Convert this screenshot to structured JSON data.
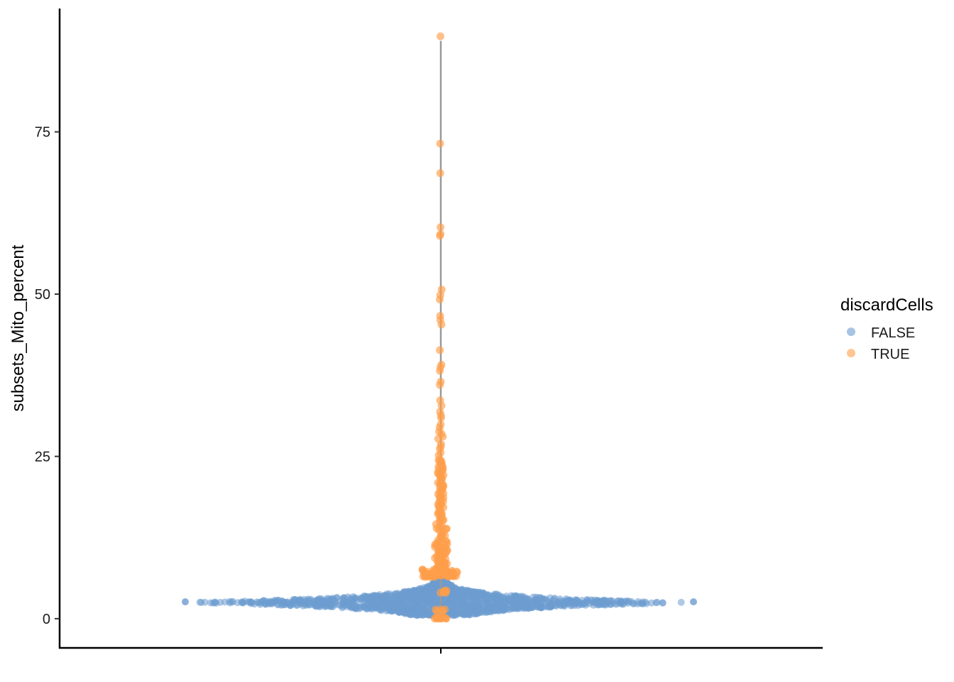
{
  "chart_data": {
    "type": "scatter",
    "subtype": "violin-beeswarm",
    "title": "",
    "xlabel": "",
    "ylabel": "subsets_Mito_percent",
    "ylim": [
      -4.5,
      94
    ],
    "y_ticks": [
      0,
      25,
      50,
      75
    ],
    "y_tick_labels": [
      "0",
      "25",
      "50",
      "75"
    ],
    "x_categories": [
      ""
    ],
    "grid": false,
    "legend": {
      "title": "discardCells",
      "placement": "right",
      "entries": [
        {
          "label": "FALSE",
          "color": "#6d9cd0"
        },
        {
          "label": "TRUE",
          "color": "#ff9e4a"
        }
      ]
    },
    "median_line_range": [
      0,
      89
    ],
    "series": [
      {
        "name": "FALSE",
        "color": "#6d9cd0",
        "y_range": [
          0.5,
          6.8
        ],
        "y_mode": 2.5,
        "distribution": "dense cluster, widest near y = 2.5, narrowing upward to about y = 7"
      },
      {
        "name": "TRUE",
        "color": "#ff9e4a",
        "y_values": [
          89.5,
          73,
          68.8,
          60.5,
          59.2,
          58.8,
          50.5,
          50,
          49.2,
          46.5,
          46,
          45.5,
          41.5,
          39,
          38.5,
          38,
          36.5,
          36,
          33.5,
          33,
          32,
          31.5,
          31,
          30,
          29.5,
          29,
          28.5,
          28,
          27.5,
          27,
          26.5,
          26,
          25.5,
          25,
          24.5,
          24,
          23.5,
          23,
          22.5,
          22,
          21.5,
          21,
          20.5,
          20,
          19.5,
          19,
          18.5,
          18,
          17.5,
          17,
          16.5,
          16,
          15.5,
          15,
          14.5,
          14,
          13.5,
          13,
          12.5,
          12,
          11.5,
          11,
          10.5,
          10,
          9.5,
          9,
          8.5,
          8,
          7.5,
          7.2,
          6.9,
          4.2,
          1.3,
          0.2,
          0.1
        ],
        "distribution": "thin column above y = 7 plus a few points near the base"
      }
    ]
  }
}
